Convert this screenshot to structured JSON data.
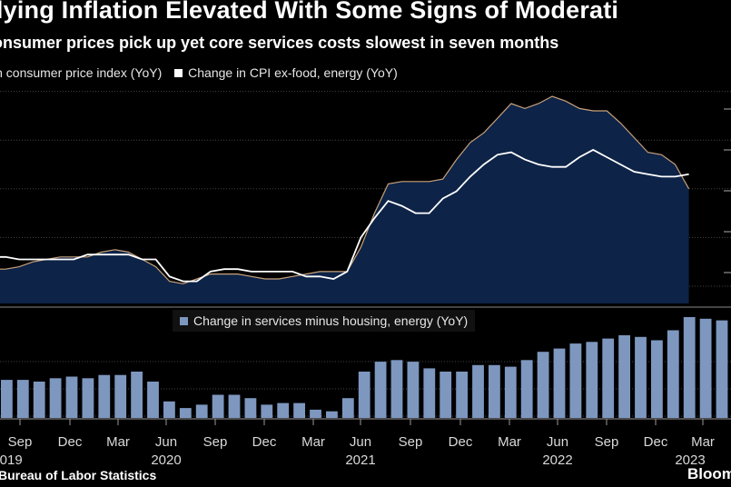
{
  "title": "erlying Inflation Elevated With Some Signs of Moderati",
  "subtitle": "onsumer prices pick up yet core services costs slowest in seven months",
  "legend_top": [
    {
      "label": "in consumer price index (YoY)"
    },
    {
      "label": "Change in CPI ex-food, energy (YoY)"
    }
  ],
  "legend_bottom": {
    "label": "Change in services minus housing, energy (YoY)"
  },
  "source": "Bureau of Labor Statistics",
  "brand": "Bloom",
  "colors": {
    "area_fill": "#0d2347",
    "area_edge": "#c9a27a",
    "core_line": "#ffffff",
    "bars": "#7d97bf",
    "grid": "#444444"
  },
  "chart_data": [
    {
      "type": "area",
      "series": [
        {
          "name": "in consumer price index (YoY)",
          "values": [
            1.7,
            1.7,
            1.8,
            2.0,
            2.1,
            2.2,
            2.2,
            2.2,
            2.4,
            2.5,
            2.4,
            2.1,
            1.8,
            1.2,
            1.1,
            1.3,
            1.5,
            1.5,
            1.5,
            1.4,
            1.3,
            1.3,
            1.4,
            1.5,
            1.6,
            1.6,
            1.6,
            2.6,
            4.0,
            5.2,
            5.3,
            5.3,
            5.3,
            5.4,
            6.2,
            6.9,
            7.3,
            7.9,
            8.5,
            8.3,
            8.5,
            8.8,
            8.6,
            8.3,
            8.2,
            8.2,
            7.7,
            7.1,
            6.5,
            6.4,
            6.0,
            5.0
          ]
        },
        {
          "name": "Change in CPI ex-food, energy (YoY)",
          "values": [
            2.2,
            2.2,
            2.1,
            2.1,
            2.1,
            2.1,
            2.1,
            2.3,
            2.3,
            2.3,
            2.3,
            2.1,
            2.1,
            1.4,
            1.2,
            1.2,
            1.6,
            1.7,
            1.7,
            1.6,
            1.6,
            1.6,
            1.6,
            1.4,
            1.4,
            1.3,
            1.6,
            3.0,
            3.8,
            4.5,
            4.3,
            4.0,
            4.0,
            4.6,
            4.9,
            5.5,
            6.0,
            6.4,
            6.5,
            6.2,
            6.0,
            5.9,
            5.9,
            6.3,
            6.6,
            6.3,
            6.0,
            5.7,
            5.6,
            5.5,
            5.5,
            5.6
          ]
        }
      ]
    },
    {
      "type": "bar",
      "series": [
        {
          "name": "Change in services minus housing, energy (YoY)",
          "values": [
            2.3,
            2.3,
            2.2,
            2.4,
            2.5,
            2.4,
            2.6,
            2.6,
            2.8,
            2.2,
            1.0,
            0.6,
            0.8,
            1.4,
            1.4,
            1.2,
            0.8,
            0.9,
            0.9,
            0.5,
            0.4,
            1.2,
            2.8,
            3.4,
            3.5,
            3.4,
            3.0,
            2.8,
            2.8,
            3.2,
            3.2,
            3.1,
            3.5,
            4.0,
            4.2,
            4.5,
            4.6,
            4.8,
            5.0,
            4.9,
            4.7,
            5.3,
            6.1,
            6.0,
            5.9,
            5.9,
            5.9,
            5.8,
            5.8,
            5.4
          ]
        }
      ]
    }
  ],
  "x_axis": {
    "months": [
      "Sep",
      "Dec",
      "Mar",
      "Jun",
      "Sep",
      "Dec",
      "Mar",
      "Jun",
      "Sep",
      "Dec",
      "Mar",
      "Jun",
      "Sep",
      "Dec",
      "Mar"
    ],
    "years": [
      "2019",
      "2020",
      "2021",
      "2022",
      "2023"
    ]
  }
}
